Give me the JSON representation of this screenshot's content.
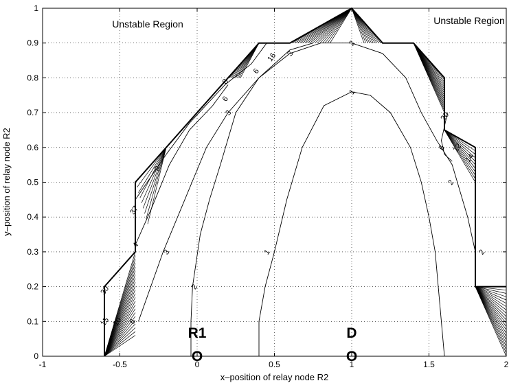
{
  "chart_data": {
    "type": "contour",
    "title": "",
    "xlabel": "x–position of relay node R2",
    "ylabel": "y–position of relay node R2",
    "xlim": [
      -1,
      2
    ],
    "ylim": [
      0,
      1
    ],
    "xticks": [
      "-1",
      "-0.5",
      "0",
      "0.5",
      "1",
      "1.5",
      "2"
    ],
    "yticks": [
      "0",
      "0.1",
      "0.2",
      "0.3",
      "0.4",
      "0.5",
      "0.6",
      "0.7",
      "0.8",
      "0.9",
      "1"
    ],
    "grid": true,
    "region_labels": [
      {
        "text": "Unstable Region",
        "x": -0.55,
        "y": 0.945
      },
      {
        "text": "Unstable Region",
        "x": 1.76,
        "y": 0.955
      }
    ],
    "nodes": [
      {
        "label": "R1",
        "x": 0,
        "y": 0
      },
      {
        "label": "D",
        "x": 1,
        "y": 0
      }
    ],
    "node_marker": "O",
    "stable_boundary": [
      [
        -0.6,
        0
      ],
      [
        -0.6,
        0.2
      ],
      [
        -0.4,
        0.3
      ],
      [
        -0.4,
        0.5
      ],
      [
        -0.2,
        0.6
      ],
      [
        0.0,
        0.7
      ],
      [
        0.2,
        0.8
      ],
      [
        0.4,
        0.9
      ],
      [
        0.6,
        0.9
      ],
      [
        1.0,
        1.0
      ],
      [
        1.2,
        0.9
      ],
      [
        1.4,
        0.9
      ],
      [
        1.6,
        0.8
      ],
      [
        1.6,
        0.65
      ],
      [
        1.8,
        0.6
      ],
      [
        1.8,
        0.2
      ],
      [
        2.0,
        0.2
      ]
    ],
    "contours": [
      {
        "level": 1,
        "points": [
          [
            0.4,
            0
          ],
          [
            0.4,
            0.1
          ],
          [
            0.44,
            0.2
          ],
          [
            0.5,
            0.3
          ],
          [
            0.58,
            0.45
          ],
          [
            0.68,
            0.6
          ],
          [
            0.82,
            0.72
          ],
          [
            1.0,
            0.76
          ],
          [
            1.12,
            0.75
          ],
          [
            1.25,
            0.7
          ],
          [
            1.38,
            0.6
          ],
          [
            1.45,
            0.5
          ],
          [
            1.5,
            0.4
          ],
          [
            1.54,
            0.3
          ],
          [
            1.56,
            0.2
          ],
          [
            1.58,
            0.1
          ],
          [
            1.6,
            0
          ]
        ]
      },
      {
        "level": 2,
        "points": [
          [
            -0.04,
            0
          ],
          [
            -0.04,
            0.1
          ],
          [
            -0.03,
            0.2
          ],
          [
            0.02,
            0.35
          ],
          [
            0.08,
            0.45
          ],
          [
            0.15,
            0.55
          ],
          [
            0.25,
            0.7
          ],
          [
            0.4,
            0.8
          ],
          [
            0.6,
            0.87
          ],
          [
            0.8,
            0.9
          ],
          [
            1.0,
            0.9
          ],
          [
            1.2,
            0.87
          ],
          [
            1.35,
            0.8
          ],
          [
            1.45,
            0.7
          ],
          [
            1.55,
            0.62
          ],
          [
            1.65,
            0.55
          ],
          [
            1.75,
            0.4
          ],
          [
            1.8,
            0.3
          ]
        ]
      },
      {
        "level": 3,
        "points": [
          [
            -0.38,
            0.1
          ],
          [
            -0.3,
            0.2
          ],
          [
            -0.22,
            0.3
          ],
          [
            -0.08,
            0.45
          ],
          [
            0.06,
            0.6
          ],
          [
            0.2,
            0.7
          ],
          [
            0.4,
            0.8
          ],
          [
            0.6,
            0.88
          ],
          [
            0.75,
            0.9
          ]
        ]
      },
      {
        "level": 3,
        "points": [
          [
            1.62,
            0.7
          ],
          [
            1.58,
            0.62
          ],
          [
            1.6,
            0.58
          ],
          [
            1.65,
            0.56
          ]
        ]
      },
      {
        "level": 4,
        "points": [
          [
            -0.4,
            0.32
          ],
          [
            -0.3,
            0.42
          ],
          [
            -0.18,
            0.55
          ],
          [
            -0.05,
            0.65
          ],
          [
            0.1,
            0.72
          ],
          [
            0.2,
            0.78
          ]
        ]
      },
      {
        "level": 6,
        "points": [
          [
            -0.4,
            0.45
          ],
          [
            -0.2,
            0.58
          ],
          [
            -0.05,
            0.67
          ],
          [
            0.18,
            0.78
          ],
          [
            0.35,
            0.84
          ],
          [
            0.45,
            0.9
          ]
        ]
      }
    ],
    "contour_labels": [
      {
        "text": "1",
        "x": 1.0,
        "y": 0.76
      },
      {
        "text": "1",
        "x": 0.45,
        "y": 0.3
      },
      {
        "text": "2",
        "x": 1.0,
        "y": 0.9
      },
      {
        "text": "2",
        "x": -0.02,
        "y": 0.2
      },
      {
        "text": "2",
        "x": 1.64,
        "y": 0.5
      },
      {
        "text": "2",
        "x": 1.84,
        "y": 0.3
      },
      {
        "text": "3",
        "x": 0.2,
        "y": 0.7
      },
      {
        "text": "3",
        "x": -0.2,
        "y": 0.3
      },
      {
        "text": "3",
        "x": 0.6,
        "y": 0.87
      },
      {
        "text": "4",
        "x": -0.4,
        "y": 0.32
      },
      {
        "text": "6",
        "x": 0.18,
        "y": 0.74
      },
      {
        "text": "6",
        "x": 0.38,
        "y": 0.82
      },
      {
        "text": "6",
        "x": -0.42,
        "y": 0.1
      },
      {
        "text": "8",
        "x": 0.18,
        "y": 0.79
      },
      {
        "text": "9",
        "x": -0.26,
        "y": 0.54
      },
      {
        "text": "10",
        "x": -0.52,
        "y": 0.1
      },
      {
        "text": "15",
        "x": -0.6,
        "y": 0.1
      },
      {
        "text": "16",
        "x": 0.48,
        "y": 0.86
      },
      {
        "text": "20",
        "x": 1.6,
        "y": 0.69
      },
      {
        "text": "30",
        "x": -0.6,
        "y": 0.19
      },
      {
        "text": "37",
        "x": -0.41,
        "y": 0.42
      },
      {
        "text": "12",
        "x": 1.68,
        "y": 0.6
      },
      {
        "text": "14",
        "x": 1.76,
        "y": 0.57
      },
      {
        "text": "6",
        "x": 1.58,
        "y": 0.6
      }
    ]
  }
}
